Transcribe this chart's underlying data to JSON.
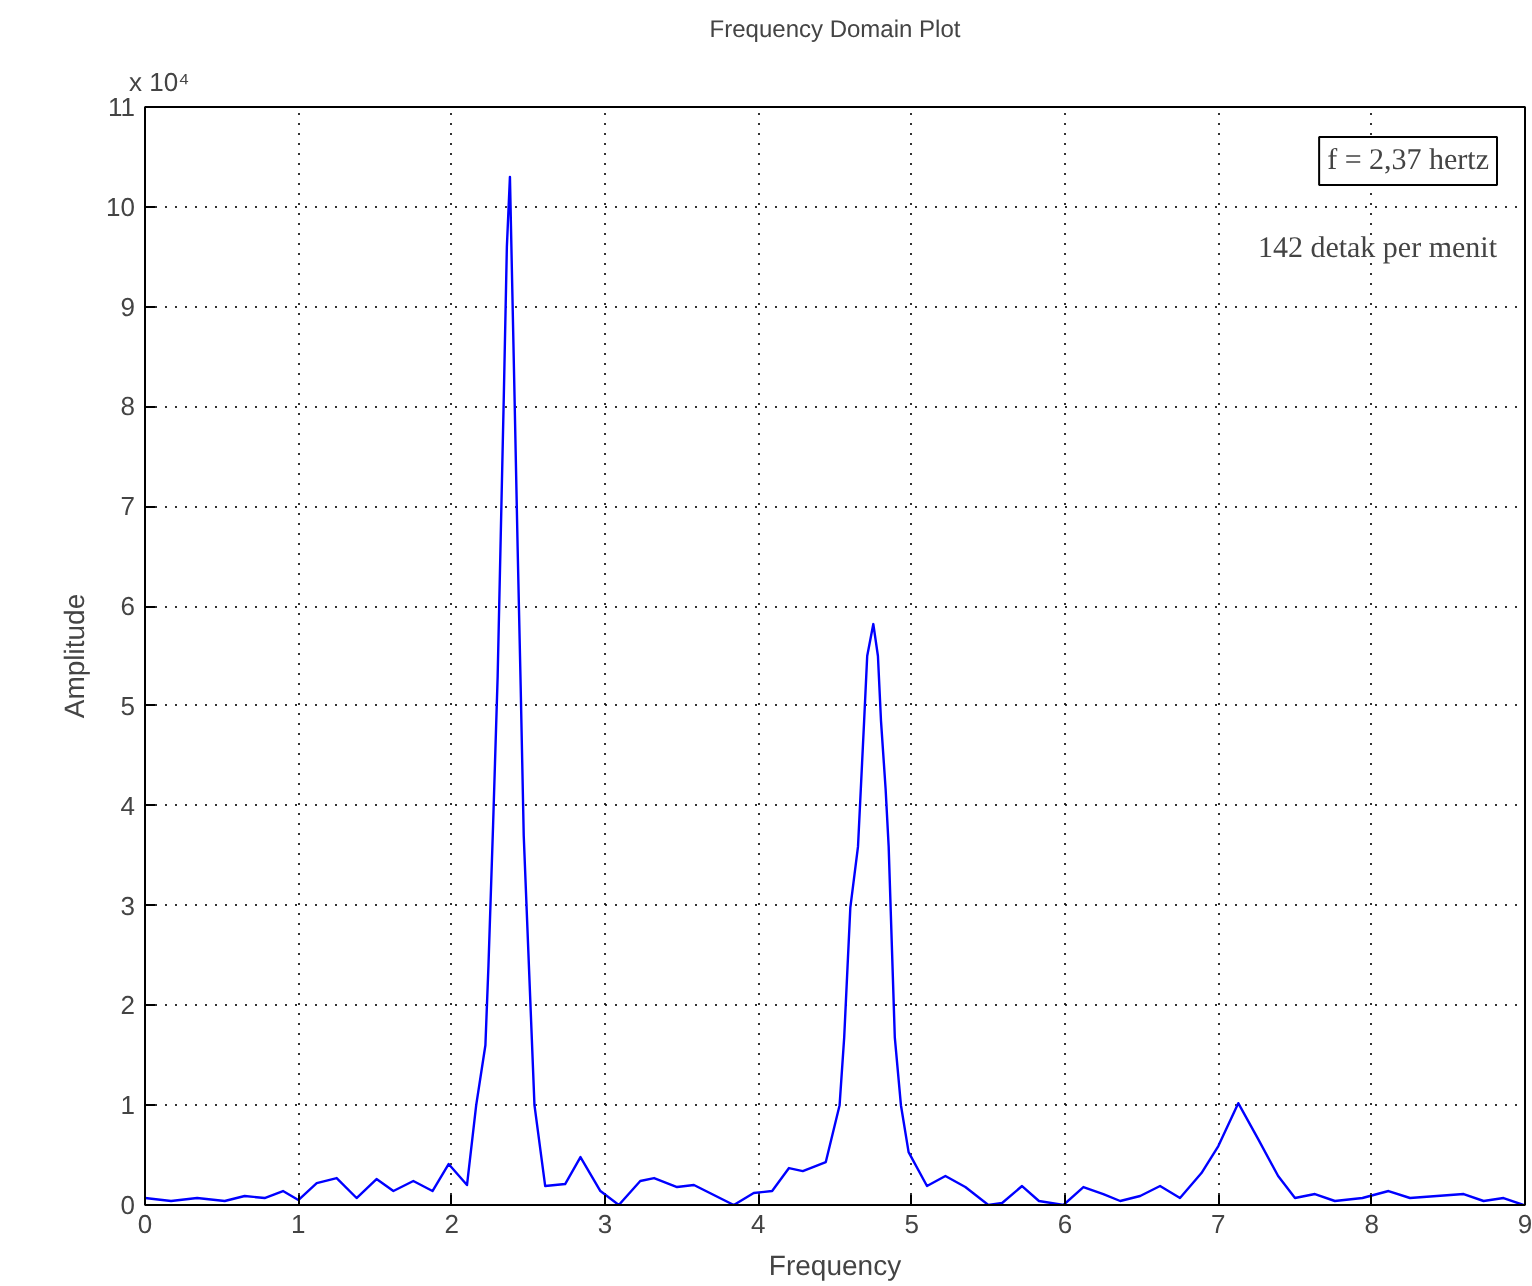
{
  "chart_data": {
    "type": "line",
    "title": "Frequency Domain Plot",
    "xlabel": "Frequency",
    "ylabel": "Amplitude",
    "annotations": [
      "x 10⁴",
      "f = 2,37 hertz",
      "142 detak per menit"
    ],
    "xlim": [
      0,
      9
    ],
    "ylim": [
      0,
      11
    ],
    "xticks": [
      0,
      1,
      2,
      3,
      4,
      5,
      6,
      7,
      8,
      9
    ],
    "yticks": [
      0,
      1,
      2,
      3,
      4,
      5,
      6,
      7,
      8,
      9,
      10,
      11
    ],
    "grid": true,
    "marker": "none",
    "line_style": "solid",
    "series": [
      {
        "color": "#0000ff",
        "x": [
          0,
          0.17,
          0.34,
          0.52,
          0.65,
          0.78,
          0.9,
          1.0,
          1.12,
          1.25,
          1.38,
          1.51,
          1.62,
          1.75,
          1.875,
          1.98,
          2.1,
          2.16,
          2.22,
          2.24,
          2.27,
          2.3,
          2.32,
          2.34,
          2.36,
          2.38,
          2.41,
          2.43,
          2.45,
          2.47,
          2.54,
          2.61,
          2.74,
          2.84,
          2.97,
          3.09,
          3.23,
          3.32,
          3.47,
          3.58,
          3.84,
          3.97,
          4.09,
          4.2,
          4.29,
          4.44,
          4.53,
          4.56,
          4.6,
          4.65,
          4.69,
          4.71,
          4.75,
          4.78,
          4.8,
          4.83,
          4.85,
          4.89,
          4.93,
          4.98,
          5.1,
          5.22,
          5.35,
          5.5,
          5.59,
          5.72,
          5.83,
          5.99,
          6.12,
          6.25,
          6.36,
          6.49,
          6.62,
          6.75,
          6.89,
          7.0,
          7.13,
          7.26,
          7.39,
          7.5,
          7.63,
          7.76,
          7.94,
          8.11,
          8.25,
          8.6,
          8.73,
          8.86,
          8.99
        ],
        "values": [
          0.07,
          0.04,
          0.07,
          0.04,
          0.09,
          0.07,
          0.14,
          0.05,
          0.22,
          0.27,
          0.07,
          0.26,
          0.14,
          0.24,
          0.14,
          0.41,
          0.2,
          1.0,
          1.6,
          2.4,
          3.8,
          5.3,
          6.7,
          8.1,
          9.6,
          10.3,
          8.1,
          6.6,
          5.2,
          3.7,
          1.0,
          0.19,
          0.21,
          0.48,
          0.14,
          0.0,
          0.24,
          0.27,
          0.18,
          0.2,
          0.0,
          0.12,
          0.14,
          0.37,
          0.34,
          0.43,
          1.0,
          1.68,
          2.98,
          3.59,
          4.85,
          5.5,
          5.82,
          5.5,
          4.85,
          4.17,
          3.59,
          1.68,
          1.0,
          0.53,
          0.19,
          0.29,
          0.18,
          0.0,
          0.02,
          0.19,
          0.04,
          0.0,
          0.18,
          0.11,
          0.04,
          0.09,
          0.19,
          0.07,
          0.32,
          0.59,
          1.02,
          0.66,
          0.29,
          0.07,
          0.11,
          0.04,
          0.07,
          0.14,
          0.07,
          0.11,
          0.04,
          0.07,
          0.0
        ]
      }
    ]
  }
}
